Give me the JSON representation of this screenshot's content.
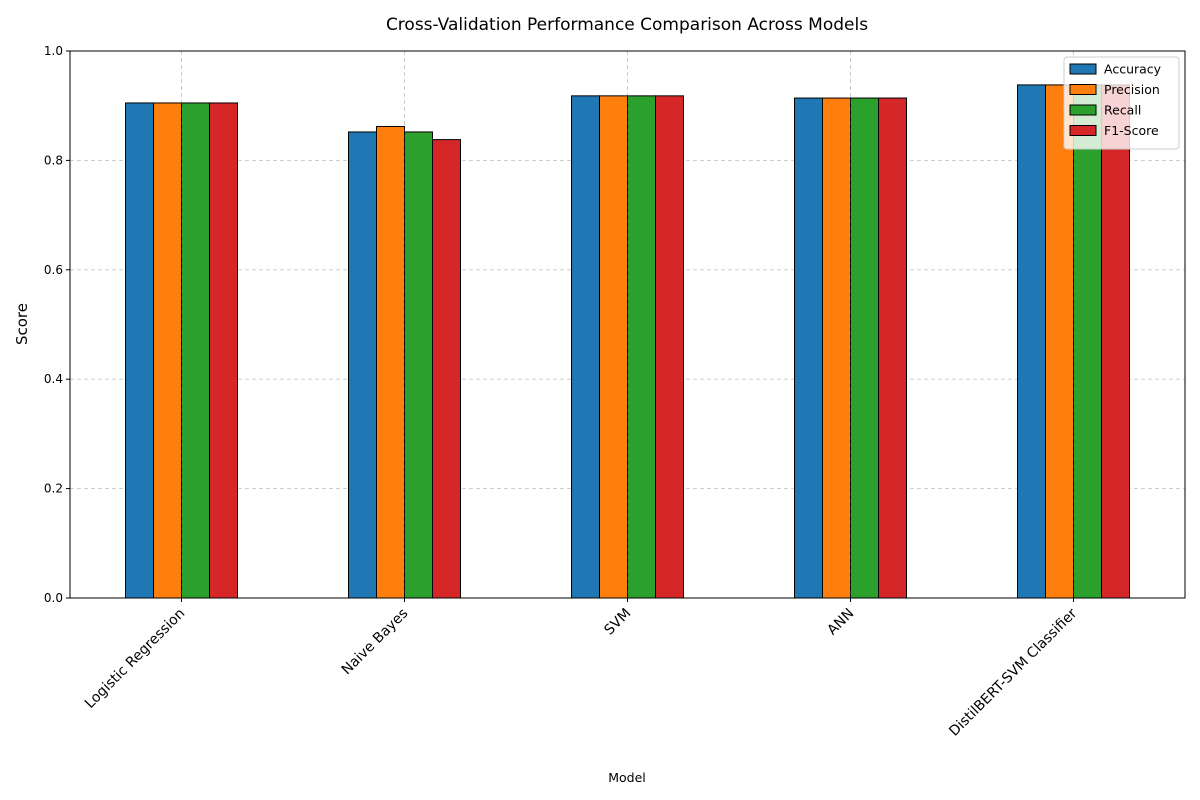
{
  "chart_data": {
    "type": "bar",
    "title": "Cross-Validation Performance Comparison Across Models",
    "xlabel": "Model",
    "ylabel": "Score",
    "ylim": [
      0,
      1
    ],
    "yticks": [
      "0.0",
      "0.2",
      "0.4",
      "0.6",
      "0.8",
      "1.0"
    ],
    "grid": true,
    "legend_position": "top-right",
    "categories": [
      "Logistic Regression",
      "Naive Bayes",
      "SVM",
      "ANN",
      "DistilBERT-SVM Classifier"
    ],
    "series": [
      {
        "name": "Accuracy",
        "color": "#1f77b4",
        "values": [
          0.905,
          0.852,
          0.918,
          0.914,
          0.938
        ]
      },
      {
        "name": "Precision",
        "color": "#ff7f0e",
        "values": [
          0.905,
          0.862,
          0.918,
          0.914,
          0.938
        ]
      },
      {
        "name": "Recall",
        "color": "#2ca02c",
        "values": [
          0.905,
          0.852,
          0.918,
          0.914,
          0.938
        ]
      },
      {
        "name": "F1-Score",
        "color": "#d62728",
        "values": [
          0.905,
          0.838,
          0.918,
          0.914,
          0.938
        ]
      }
    ]
  }
}
